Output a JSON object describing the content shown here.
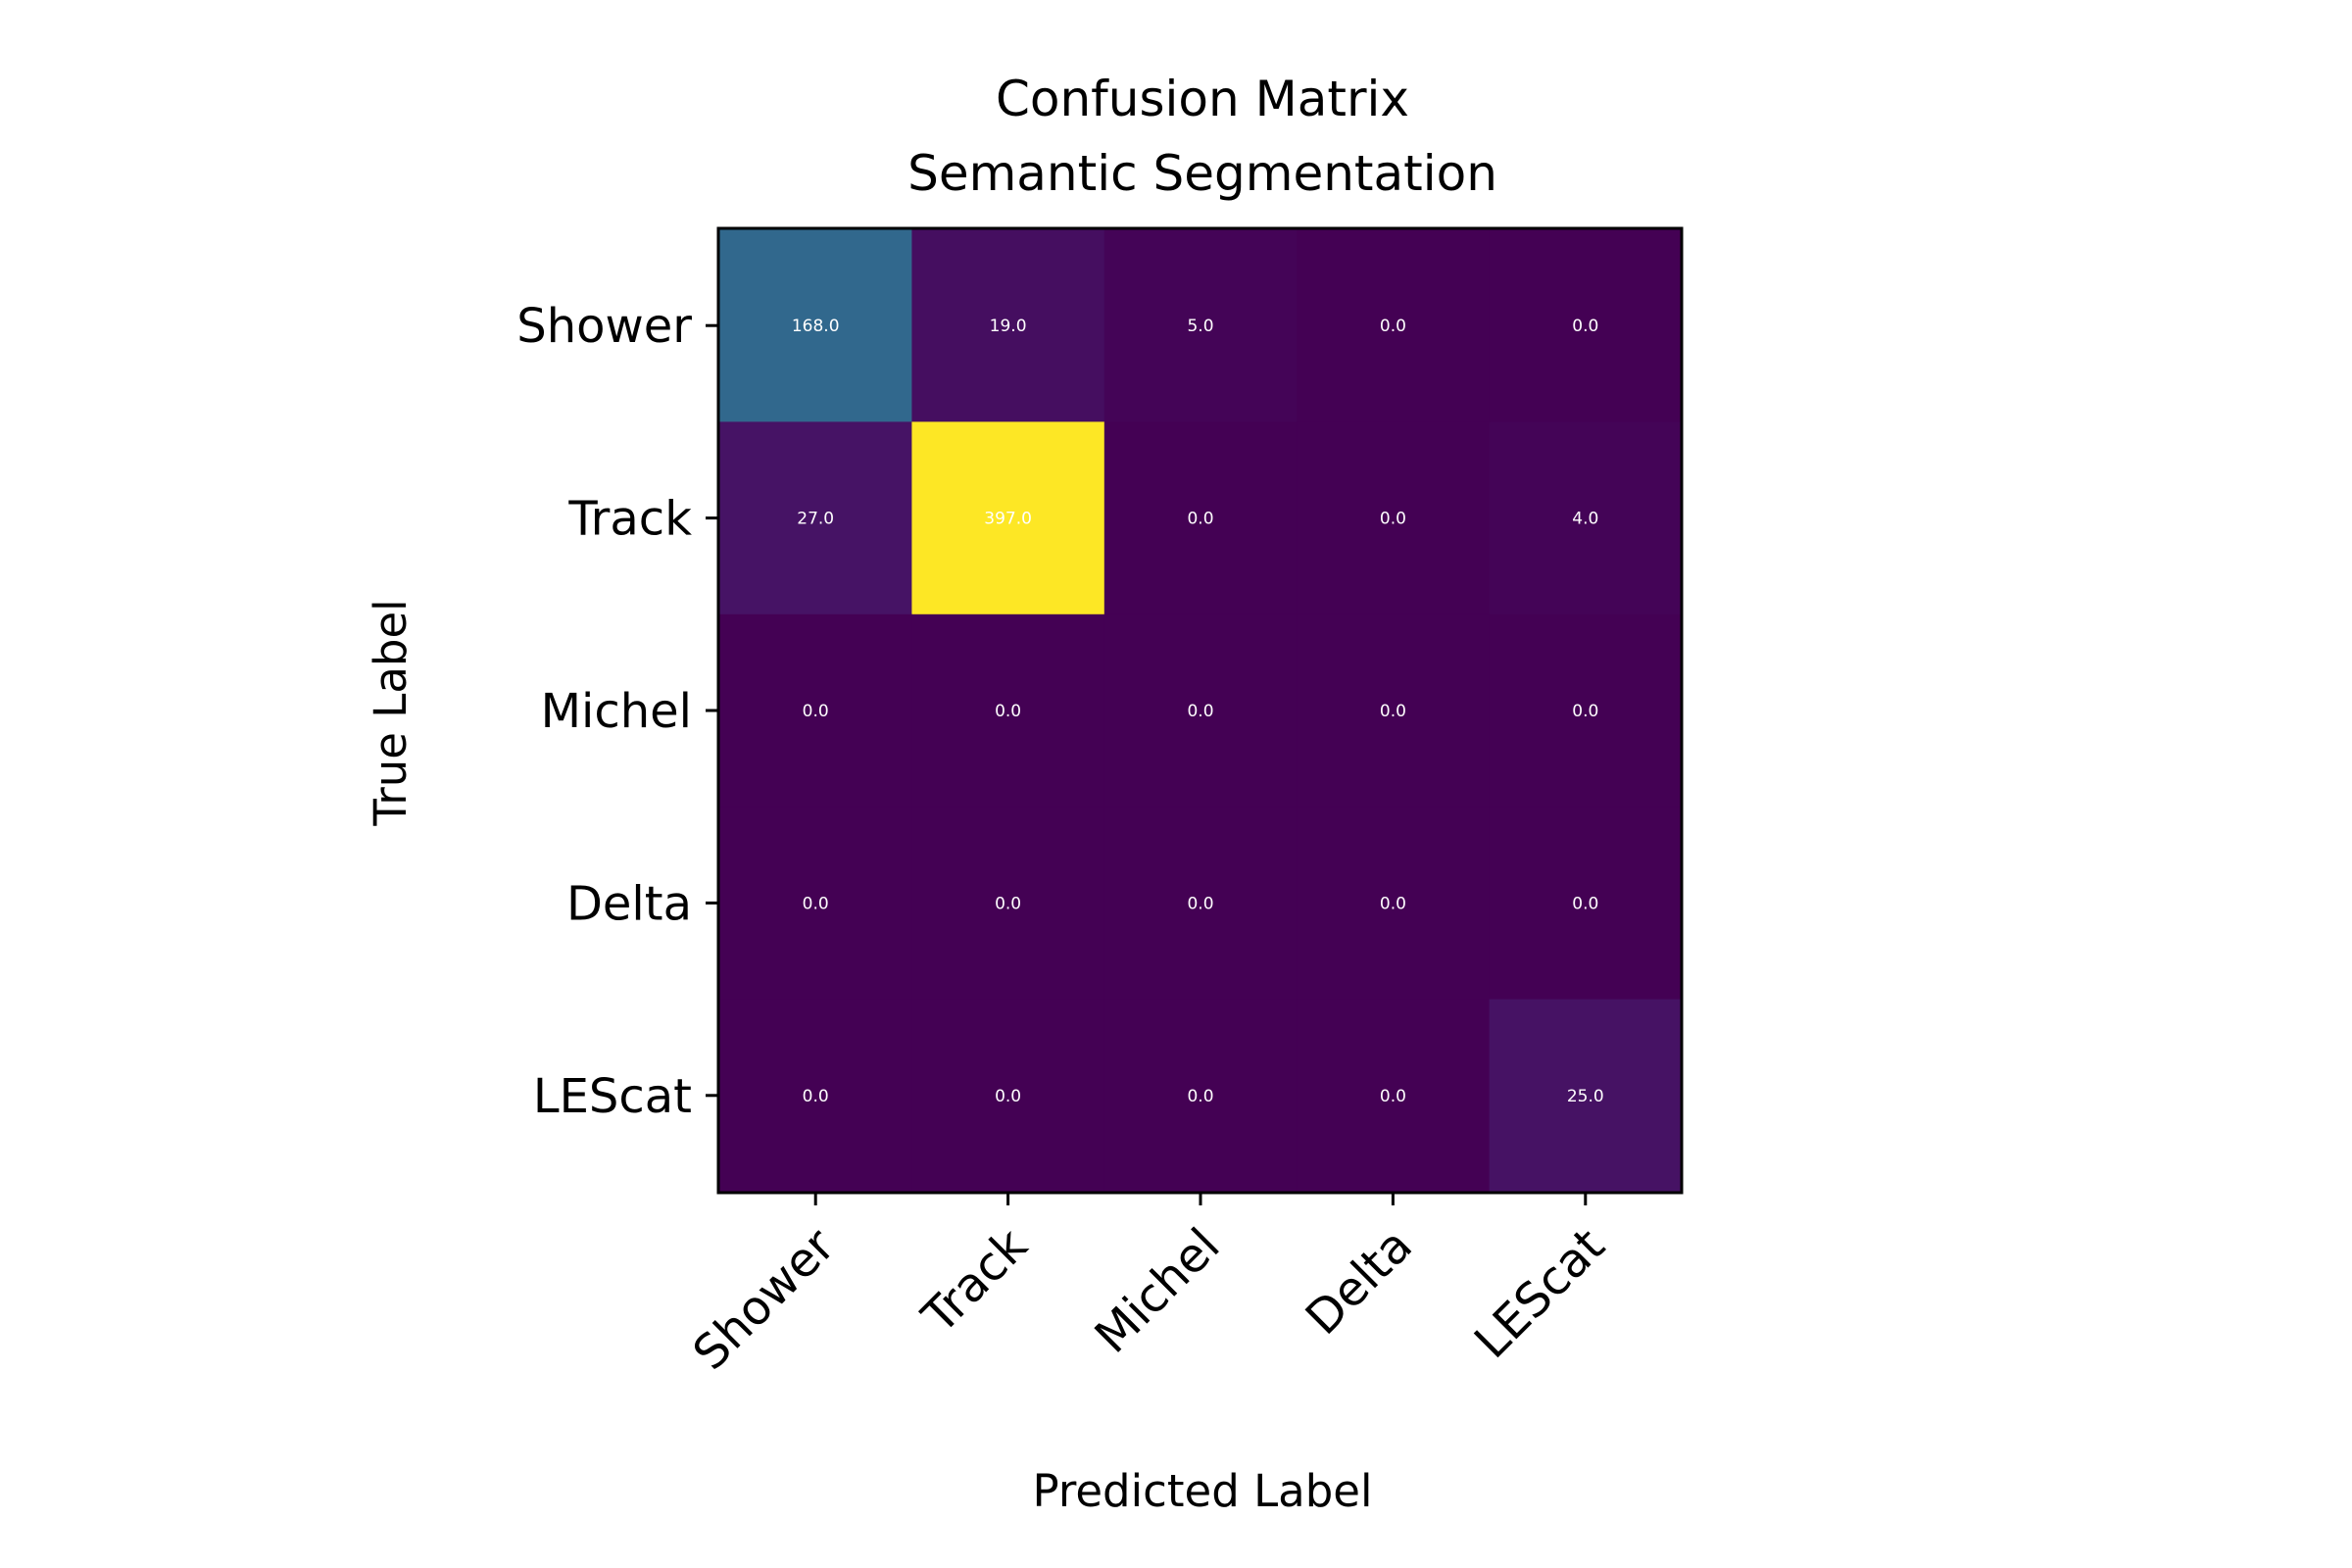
{
  "chart_data": {
    "type": "heatmap",
    "title_lines": [
      "Confusion Matrix",
      "Semantic Segmentation"
    ],
    "xlabel": "Predicted Label",
    "ylabel": "True Label",
    "x_categories": [
      "Shower",
      "Track",
      "Michel",
      "Delta",
      "LEScat"
    ],
    "y_categories": [
      "Shower",
      "Track",
      "Michel",
      "Delta",
      "LEScat"
    ],
    "values": [
      [
        168.0,
        19.0,
        5.0,
        0.0,
        0.0
      ],
      [
        27.0,
        397.0,
        0.0,
        0.0,
        4.0
      ],
      [
        0.0,
        0.0,
        0.0,
        0.0,
        0.0
      ],
      [
        0.0,
        0.0,
        0.0,
        0.0,
        0.0
      ],
      [
        0.0,
        0.0,
        0.0,
        0.0,
        25.0
      ]
    ],
    "value_labels": [
      [
        "168.0",
        "19.0",
        "5.0",
        "0.0",
        "0.0"
      ],
      [
        "27.0",
        "397.0",
        "0.0",
        "0.0",
        "4.0"
      ],
      [
        "0.0",
        "0.0",
        "0.0",
        "0.0",
        "0.0"
      ],
      [
        "0.0",
        "0.0",
        "0.0",
        "0.0",
        "0.0"
      ],
      [
        "0.0",
        "0.0",
        "0.0",
        "0.0",
        "25.0"
      ]
    ],
    "colormap": "viridis",
    "vmin": 0,
    "vmax": 397,
    "colormap_endpoints": {
      "low": "#440154",
      "high": "#fde725"
    },
    "cell_text_color": "#ffffff",
    "x_tick_rotation_deg": 45,
    "grid": false,
    "legend": "none"
  }
}
